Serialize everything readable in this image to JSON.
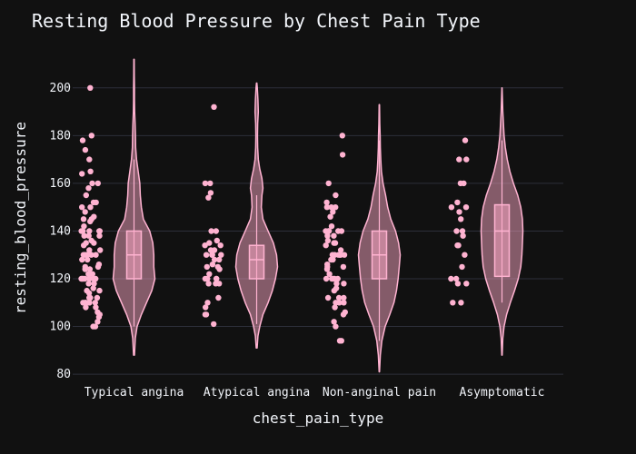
{
  "chart_data": {
    "type": "violin",
    "title": "Resting Blood Pressure by Chest Pain Type",
    "xlabel": "chest_pain_type",
    "ylabel": "resting_blood_pressure",
    "ylim": [
      77,
      214
    ],
    "yticks": [
      80,
      100,
      120,
      140,
      160,
      180,
      200
    ],
    "grid": true,
    "colors": {
      "background": "#111111",
      "grid": "#2d2f3a",
      "text": "#f2f5fa",
      "violin_fill": "#f8a5c2",
      "violin_line": "#ffb3d1",
      "point": "#ffb3d1"
    },
    "categories": [
      "Typical angina",
      "Atypical angina",
      "Non-anginal pain",
      "Asymptomatic"
    ],
    "series": [
      {
        "category": "Typical angina",
        "box": {
          "q1": 120,
          "median": 130,
          "q3": 140,
          "lower_fence": 100,
          "upper_fence": 170
        },
        "range": [
          88,
          212
        ],
        "density": [
          [
            88,
            0.02
          ],
          [
            95,
            0.06
          ],
          [
            100,
            0.15
          ],
          [
            105,
            0.35
          ],
          [
            110,
            0.6
          ],
          [
            115,
            0.85
          ],
          [
            120,
            1.0
          ],
          [
            125,
            0.95
          ],
          [
            130,
            0.95
          ],
          [
            135,
            0.9
          ],
          [
            140,
            0.75
          ],
          [
            145,
            0.45
          ],
          [
            150,
            0.35
          ],
          [
            155,
            0.3
          ],
          [
            160,
            0.28
          ],
          [
            165,
            0.2
          ],
          [
            170,
            0.12
          ],
          [
            175,
            0.08
          ],
          [
            180,
            0.07
          ],
          [
            185,
            0.05
          ],
          [
            190,
            0.03
          ],
          [
            195,
            0.02
          ],
          [
            200,
            0.02
          ],
          [
            205,
            0.015
          ],
          [
            212,
            0.01
          ]
        ],
        "points": [
          200,
          180,
          178,
          174,
          170,
          165,
          164,
          160,
          160,
          158,
          155,
          152,
          152,
          150,
          150,
          148,
          146,
          145,
          145,
          144,
          142,
          140,
          140,
          140,
          140,
          140,
          138,
          138,
          138,
          136,
          135,
          135,
          134,
          132,
          132,
          130,
          130,
          130,
          130,
          130,
          130,
          128,
          128,
          126,
          125,
          125,
          124,
          124,
          122,
          122,
          120,
          120,
          120,
          120,
          120,
          120,
          120,
          118,
          118,
          116,
          115,
          115,
          114,
          112,
          112,
          112,
          110,
          110,
          110,
          110,
          110,
          110,
          108,
          108,
          106,
          105,
          104,
          102,
          100,
          100
        ]
      },
      {
        "category": "Atypical angina",
        "box": {
          "q1": 120,
          "median": 128,
          "q3": 134,
          "lower_fence": 101,
          "upper_fence": 155
        },
        "range": [
          91,
          202
        ],
        "density": [
          [
            91,
            0.02
          ],
          [
            96,
            0.06
          ],
          [
            100,
            0.15
          ],
          [
            105,
            0.3
          ],
          [
            110,
            0.55
          ],
          [
            115,
            0.75
          ],
          [
            120,
            0.9
          ],
          [
            125,
            1.0
          ],
          [
            130,
            0.95
          ],
          [
            135,
            0.8
          ],
          [
            140,
            0.55
          ],
          [
            145,
            0.3
          ],
          [
            150,
            0.22
          ],
          [
            155,
            0.25
          ],
          [
            158,
            0.3
          ],
          [
            162,
            0.25
          ],
          [
            166,
            0.15
          ],
          [
            170,
            0.08
          ],
          [
            175,
            0.05
          ],
          [
            180,
            0.04
          ],
          [
            185,
            0.05
          ],
          [
            190,
            0.08
          ],
          [
            195,
            0.06
          ],
          [
            200,
            0.03
          ],
          [
            202,
            0.01
          ]
        ],
        "points": [
          192,
          160,
          160,
          156,
          154,
          140,
          140,
          136,
          135,
          134,
          134,
          132,
          132,
          130,
          130,
          130,
          130,
          128,
          128,
          126,
          125,
          125,
          124,
          122,
          120,
          120,
          120,
          120,
          118,
          118,
          118,
          112,
          110,
          108,
          105,
          105,
          101
        ]
      },
      {
        "category": "Non-anginal pain",
        "box": {
          "q1": 120,
          "median": 130,
          "q3": 140,
          "lower_fence": 94,
          "upper_fence": 178
        },
        "range": [
          81,
          193
        ],
        "density": [
          [
            81,
            0.01
          ],
          [
            88,
            0.05
          ],
          [
            94,
            0.12
          ],
          [
            100,
            0.28
          ],
          [
            105,
            0.5
          ],
          [
            110,
            0.7
          ],
          [
            115,
            0.82
          ],
          [
            120,
            0.9
          ],
          [
            125,
            0.95
          ],
          [
            130,
            1.0
          ],
          [
            135,
            0.92
          ],
          [
            140,
            0.78
          ],
          [
            145,
            0.55
          ],
          [
            150,
            0.4
          ],
          [
            155,
            0.3
          ],
          [
            160,
            0.18
          ],
          [
            165,
            0.1
          ],
          [
            170,
            0.07
          ],
          [
            175,
            0.05
          ],
          [
            180,
            0.04
          ],
          [
            185,
            0.02
          ],
          [
            193,
            0.01
          ]
        ],
        "points": [
          180,
          172,
          160,
          155,
          152,
          150,
          150,
          150,
          148,
          146,
          142,
          140,
          140,
          140,
          140,
          140,
          138,
          138,
          136,
          135,
          135,
          134,
          132,
          130,
          130,
          130,
          130,
          130,
          130,
          128,
          128,
          126,
          125,
          125,
          124,
          122,
          120,
          120,
          120,
          120,
          120,
          118,
          118,
          116,
          115,
          112,
          112,
          112,
          110,
          110,
          110,
          108,
          106,
          105,
          102,
          100,
          94,
          94
        ]
      },
      {
        "category": "Asymptomatic",
        "box": {
          "q1": 121,
          "median": 140,
          "q3": 151,
          "lower_fence": 110,
          "upper_fence": 178
        },
        "range": [
          88,
          200
        ],
        "density": [
          [
            88,
            0.01
          ],
          [
            95,
            0.04
          ],
          [
            100,
            0.1
          ],
          [
            105,
            0.22
          ],
          [
            110,
            0.4
          ],
          [
            115,
            0.6
          ],
          [
            120,
            0.78
          ],
          [
            125,
            0.9
          ],
          [
            130,
            0.95
          ],
          [
            135,
            0.98
          ],
          [
            140,
            1.0
          ],
          [
            145,
            0.98
          ],
          [
            150,
            0.9
          ],
          [
            155,
            0.75
          ],
          [
            160,
            0.55
          ],
          [
            165,
            0.38
          ],
          [
            170,
            0.25
          ],
          [
            175,
            0.16
          ],
          [
            180,
            0.1
          ],
          [
            185,
            0.07
          ],
          [
            190,
            0.04
          ],
          [
            195,
            0.02
          ],
          [
            200,
            0.005
          ]
        ],
        "points": [
          178,
          170,
          170,
          160,
          160,
          152,
          150,
          150,
          148,
          145,
          140,
          140,
          138,
          134,
          134,
          130,
          125,
          120,
          120,
          118,
          118,
          110,
          110
        ]
      }
    ]
  }
}
